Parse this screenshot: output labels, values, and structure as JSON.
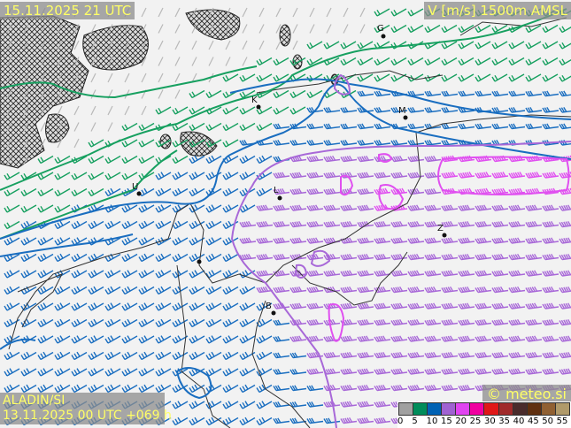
{
  "header": {
    "datetime": "15.11.2025 21 UTC",
    "parameter": "V [m/s] 1500m AMSL"
  },
  "footer": {
    "model": "ALADIN/SI",
    "run": "13.11.2025 00 UTC +069 h",
    "copyright": "© meteo.si"
  },
  "legend": {
    "ticks": [
      "0",
      "5",
      "10",
      "15",
      "20",
      "25",
      "30",
      "35",
      "40",
      "45",
      "50",
      "55"
    ],
    "colors": [
      "#a0a0a0",
      "#008c5a",
      "#0062b4",
      "#a062d2",
      "#e044f0",
      "#f000a0",
      "#e01818",
      "#a02a2a",
      "#4a2c2c",
      "#603010",
      "#906032",
      "#b09a6a"
    ]
  },
  "cities": [
    {
      "name": "G"
    },
    {
      "name": "K"
    },
    {
      "name": "M"
    },
    {
      "name": "U"
    },
    {
      "name": "L"
    },
    {
      "name": "Z"
    },
    {
      "name": "B"
    },
    {
      "name": ""
    }
  ],
  "barb_colors": {
    "calm": "#b8b8b8",
    "green": "#17a060",
    "blue": "#1a6ec0",
    "purple": "#a868d8",
    "magenta": "#e050f0"
  }
}
